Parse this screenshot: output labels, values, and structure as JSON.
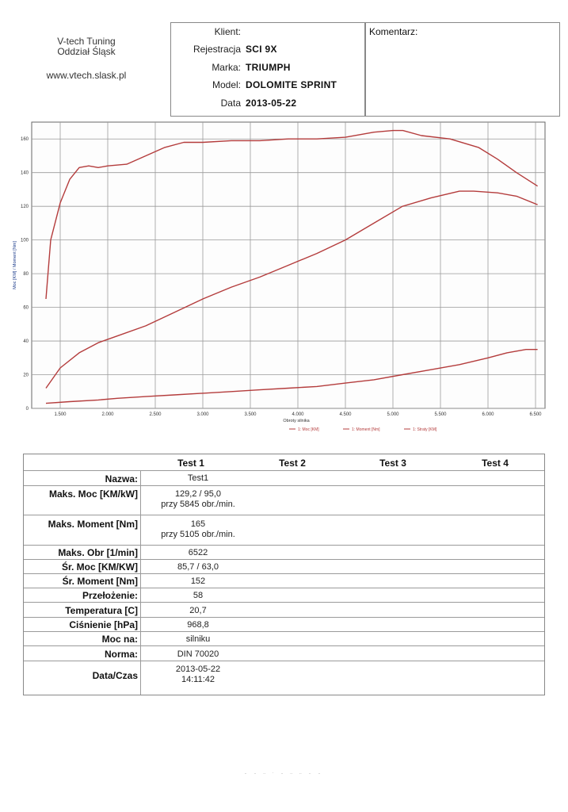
{
  "company": {
    "name": "V-tech Tuning",
    "branch": "Oddział Śląsk",
    "website": "www.vtech.slask.pl"
  },
  "client": {
    "rows": [
      {
        "label": "Klient:",
        "value": ""
      },
      {
        "label": "Rejestracja",
        "value": "SCI 9X"
      },
      {
        "label": "Marka:",
        "value": "TRIUMPH"
      },
      {
        "label": "Model:",
        "value": "DOLOMITE SPRINT"
      },
      {
        "label": "Data",
        "value": "2013-05-22"
      }
    ]
  },
  "comment": {
    "label": "Komentarz:"
  },
  "chart_data": {
    "type": "line",
    "xlabel": "Obroty silnika",
    "ylabel": "Moc [KM] / Moment [Nm]",
    "xlim": [
      1200,
      6600
    ],
    "ylim": [
      0,
      170
    ],
    "xticks": [
      1500,
      2000,
      2500,
      3000,
      3500,
      4000,
      4500,
      5000,
      5500,
      6000,
      6500
    ],
    "xtick_labels": [
      "1.500",
      "2.000",
      "2.500",
      "3.000",
      "3.500",
      "4.000",
      "4.500",
      "5.000",
      "5.500",
      "6.000",
      "6.500"
    ],
    "yticks": [
      0,
      20,
      40,
      60,
      80,
      100,
      120,
      140,
      160
    ],
    "ytick_labels": [
      "0",
      "20",
      "40",
      "60",
      "80",
      "100",
      "120",
      "140",
      "160"
    ],
    "grid": true,
    "legend_position": "bottom-right",
    "color": "#b43c3c",
    "series": [
      {
        "name": "1: Moc [KM]",
        "x": [
          1350,
          1500,
          1700,
          1900,
          2100,
          2400,
          2700,
          3000,
          3300,
          3600,
          3900,
          4200,
          4500,
          4800,
          5100,
          5400,
          5700,
          5850,
          6100,
          6300,
          6522
        ],
        "y": [
          12,
          24,
          33,
          39,
          43,
          49,
          57,
          65,
          72,
          78,
          85,
          92,
          100,
          110,
          120,
          125,
          129,
          129,
          128,
          126,
          121
        ]
      },
      {
        "name": "1: Moment [Nm]",
        "x": [
          1350,
          1400,
          1500,
          1600,
          1700,
          1800,
          1900,
          2000,
          2200,
          2400,
          2600,
          2800,
          3000,
          3300,
          3600,
          3900,
          4200,
          4500,
          4800,
          5000,
          5105,
          5300,
          5600,
          5900,
          6100,
          6300,
          6522
        ],
        "y": [
          65,
          100,
          122,
          136,
          143,
          144,
          143,
          144,
          145,
          150,
          155,
          158,
          158,
          159,
          159,
          160,
          160,
          161,
          164,
          165,
          165,
          162,
          160,
          155,
          148,
          140,
          132
        ]
      },
      {
        "name": "1: Straty [KM]",
        "x": [
          1350,
          1600,
          1900,
          2100,
          2400,
          2700,
          3000,
          3300,
          3600,
          3900,
          4200,
          4500,
          4800,
          5100,
          5400,
          5700,
          6000,
          6200,
          6400,
          6522
        ],
        "y": [
          3,
          4,
          5,
          6,
          7,
          8,
          9,
          10,
          11,
          12,
          13,
          15,
          17,
          20,
          23,
          26,
          30,
          33,
          35,
          35
        ]
      }
    ]
  },
  "results": {
    "headers": [
      "Test 1",
      "Test 2",
      "Test 3",
      "Test 4"
    ],
    "rows": [
      {
        "label": "Nazwa:",
        "v1": "Test1",
        "v2": ""
      },
      {
        "label": "Maks. Moc [KM/kW]",
        "v1": "129,2 / 95,0",
        "v2": "przy 5845 obr./min."
      },
      {
        "label": "Maks. Moment [Nm]",
        "v1": "165",
        "v2": "przy 5105 obr./min."
      },
      {
        "label": "Maks. Obr [1/min]",
        "v1": "6522",
        "v2": ""
      },
      {
        "label": "Śr. Moc [KM/KW]",
        "v1": "85,7 / 63,0",
        "v2": ""
      },
      {
        "label": "Śr. Moment [Nm]",
        "v1": "152",
        "v2": ""
      },
      {
        "label": "Przełożenie:",
        "v1": "58",
        "v2": ""
      },
      {
        "label": "Temperatura [C]",
        "v1": "20,7",
        "v2": ""
      },
      {
        "label": "Ciśnienie [hPa]",
        "v1": "968,8",
        "v2": ""
      },
      {
        "label": "Moc na:",
        "v1": "silniku",
        "v2": ""
      },
      {
        "label": "Norma:",
        "v1": "DIN 70020",
        "v2": ""
      },
      {
        "label": "Data/Czas",
        "v1": "2013-05-22",
        "v2": "14:11:42"
      }
    ]
  }
}
